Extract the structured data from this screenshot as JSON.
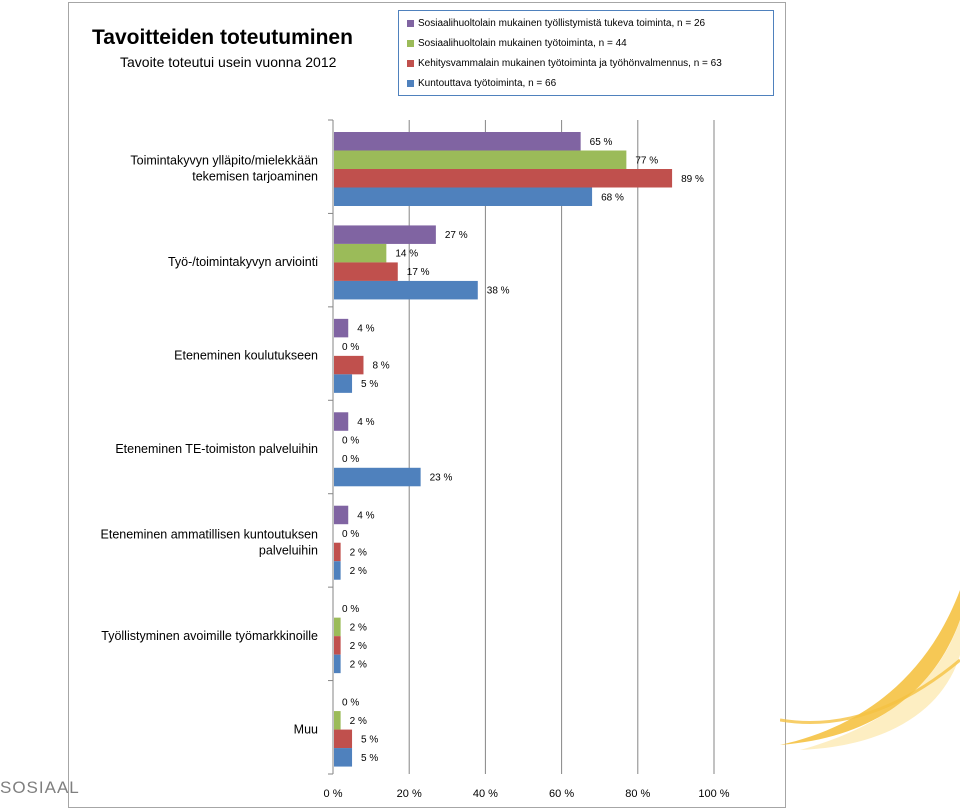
{
  "footer": {
    "text": "SOSIAAL"
  },
  "colors": {
    "purple": "#8064a2",
    "green": "#9bbb59",
    "red": "#c0504d",
    "blue": "#4f81bd",
    "accent_yellow": "#f5c242"
  },
  "chart_data": {
    "type": "bar",
    "orientation": "horizontal",
    "title": "Tavoitteiden toteutuminen",
    "subtitle": "Tavoite toteutui usein vuonna 2012",
    "categories": [
      "Toimintakyvyn ylläpito/mielekkään tekemisen tarjoaminen",
      "Työ-/toimintakyvyn arviointi",
      "Eteneminen koulutukseen",
      "Eteneminen TE-toimiston palveluihin",
      "Eteneminen ammatillisen kuntoutuksen palveluihin",
      "Työllistyminen avoimille työmarkkinoille",
      "Muu"
    ],
    "category_lines": [
      [
        "Toimintakyvyn ylläpito/mielekkään",
        "tekemisen tarjoaminen"
      ],
      [
        "Työ-/toimintakyvyn arviointi"
      ],
      [
        "Eteneminen koulutukseen"
      ],
      [
        "Eteneminen TE-toimiston palveluihin"
      ],
      [
        "Eteneminen ammatillisen kuntoutuksen",
        "palveluihin"
      ],
      [
        "Työllistyminen avoimille työmarkkinoille"
      ],
      [
        "Muu"
      ]
    ],
    "series": [
      {
        "name": "Sosiaalihuoltolain mukainen työllistymistä tukeva toiminta, n = 26",
        "color": "#8064a2",
        "values": [
          65,
          27,
          4,
          4,
          4,
          0,
          0
        ]
      },
      {
        "name": "Sosiaalihuoltolain mukainen työtoiminta, n = 44",
        "color": "#9bbb59",
        "values": [
          77,
          14,
          0,
          0,
          0,
          2,
          2
        ]
      },
      {
        "name": "Kehitysvammalain mukainen työtoiminta ja työhönvalmennus, n = 63",
        "color": "#c0504d",
        "values": [
          89,
          17,
          8,
          0,
          2,
          2,
          5
        ]
      },
      {
        "name": "Kuntouttava työtoiminta, n = 66",
        "color": "#4f81bd",
        "values": [
          68,
          38,
          5,
          23,
          2,
          2,
          5
        ]
      }
    ],
    "value_suffix": " %",
    "xlim": [
      0,
      100
    ],
    "xticks": [
      0,
      20,
      40,
      60,
      80,
      100
    ],
    "xtick_labels": [
      "0 %",
      "20 %",
      "40 %",
      "60 %",
      "80 %",
      "100 %"
    ],
    "grid": true,
    "legend_position": "top-right"
  }
}
